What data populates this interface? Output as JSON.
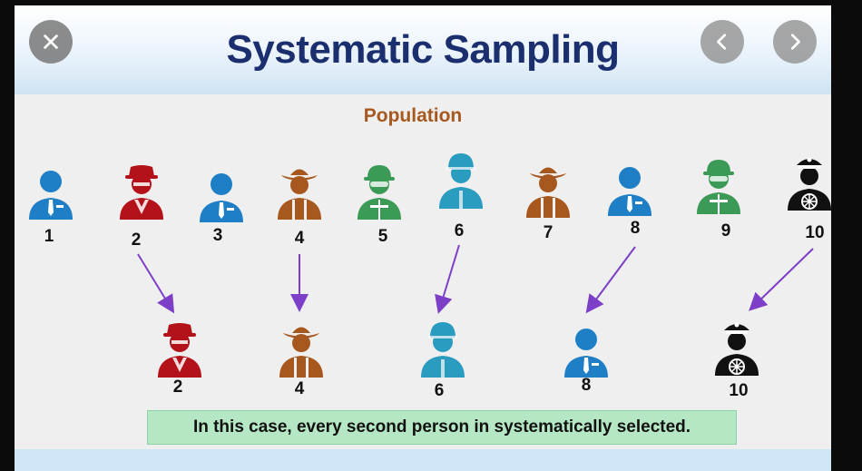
{
  "slide": {
    "title": "Systematic Sampling",
    "population_label": "Population",
    "caption": "In this case, every second person in systematically selected."
  },
  "population": [
    {
      "number": "1",
      "type": "businessman",
      "color": "#1f7fc6"
    },
    {
      "number": "2",
      "type": "spy",
      "color": "#b3121a"
    },
    {
      "number": "3",
      "type": "businessman",
      "color": "#1f7fc6"
    },
    {
      "number": "4",
      "type": "cowboy",
      "color": "#a6581e"
    },
    {
      "number": "5",
      "type": "firefighter",
      "color": "#3b9a55"
    },
    {
      "number": "6",
      "type": "soldier",
      "color": "#2a9cc0"
    },
    {
      "number": "7",
      "type": "cowboy",
      "color": "#a6581e"
    },
    {
      "number": "8",
      "type": "businessman",
      "color": "#1f7fc6"
    },
    {
      "number": "9",
      "type": "firefighter",
      "color": "#3b9a55"
    },
    {
      "number": "10",
      "type": "captain",
      "color": "#111111"
    }
  ],
  "sample": [
    {
      "number": "2",
      "type": "spy",
      "color": "#b3121a"
    },
    {
      "number": "4",
      "type": "cowboy",
      "color": "#a6581e"
    },
    {
      "number": "6",
      "type": "soldier",
      "color": "#2a9cc0"
    },
    {
      "number": "8",
      "type": "businessman",
      "color": "#1f7fc6"
    },
    {
      "number": "10",
      "type": "captain",
      "color": "#111111"
    }
  ],
  "arrow_color": "#7d3fc7",
  "controls": {
    "close_icon": "close-icon",
    "prev_icon": "chevron-left-icon",
    "next_icon": "chevron-right-icon"
  }
}
